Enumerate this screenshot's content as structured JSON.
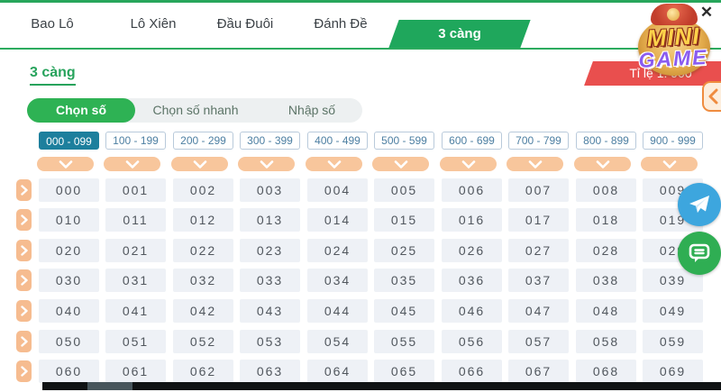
{
  "window": {
    "close_glyph": "✕"
  },
  "tabs": {
    "items": [
      "Bao Lô",
      "Lô Xiên",
      "Đầu Đuôi",
      "Đánh Đề",
      "3 càng"
    ],
    "active": "3 càng"
  },
  "logo": {
    "line1": "MINI",
    "line2": "GAME"
  },
  "page": {
    "title": "3 càng",
    "ratio_label": "Tỉ lệ 1: 900"
  },
  "mode_tabs": {
    "items": [
      "Chọn số",
      "Chọn số nhanh",
      "Nhập số"
    ],
    "active": "Chọn số"
  },
  "ranges": {
    "items": [
      "000 - 099",
      "100 - 199",
      "200 - 299",
      "300 - 399",
      "400 - 499",
      "500 - 599",
      "600 - 699",
      "700 - 799",
      "800 - 899",
      "900 - 999"
    ],
    "active": "000 - 099"
  },
  "grid": {
    "rows": [
      [
        "000",
        "001",
        "002",
        "003",
        "004",
        "005",
        "006",
        "007",
        "008",
        "009"
      ],
      [
        "010",
        "011",
        "012",
        "013",
        "014",
        "015",
        "016",
        "017",
        "018",
        "019"
      ],
      [
        "020",
        "021",
        "022",
        "023",
        "024",
        "025",
        "026",
        "027",
        "028",
        "029"
      ],
      [
        "030",
        "031",
        "032",
        "033",
        "034",
        "035",
        "036",
        "037",
        "038",
        "039"
      ],
      [
        "040",
        "041",
        "042",
        "043",
        "044",
        "045",
        "046",
        "047",
        "048",
        "049"
      ],
      [
        "050",
        "051",
        "052",
        "053",
        "054",
        "055",
        "056",
        "057",
        "058",
        "059"
      ],
      [
        "060",
        "061",
        "062",
        "063",
        "064",
        "065",
        "066",
        "067",
        "068",
        "069"
      ]
    ]
  },
  "icons": {
    "close": "close-icon",
    "range_dropdown": "chevron-down-icon",
    "row_expand": "chevron-right-icon",
    "side_nav": "chevron-left-icon",
    "telegram": "telegram-icon",
    "chat": "chat-icon"
  },
  "colors": {
    "accent_green": "#1fa75c",
    "pill_green": "#2eb254",
    "active_chip_teal": "#1d7f9d",
    "orange_pill": "#f8c69c",
    "ratio_red": "#e94f4e",
    "telegram_blue": "#3da6de",
    "chat_green": "#2fae53",
    "cell_bg": "#eef1f6"
  }
}
